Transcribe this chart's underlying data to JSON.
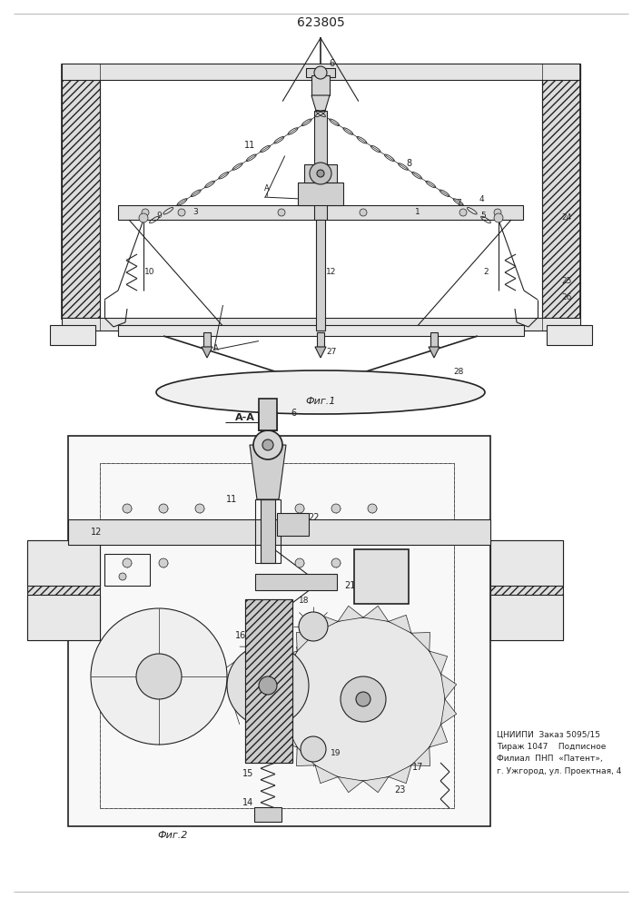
{
  "title": "623805",
  "title_fontsize": 10,
  "fig_width": 7.07,
  "fig_height": 10.0,
  "bg_color": "#ffffff",
  "lc": "#222222",
  "fig1_label": "Фиг.1",
  "fig2_label": "Фиг.2",
  "section_label": "А-А",
  "publisher_text": "ЦНИИПИ  Заказ 5095/15\nТираж 1047    Подписное\nФилиал  ПНП  «Патент»,\nг. Ужгород, ул. Проектная, 4"
}
